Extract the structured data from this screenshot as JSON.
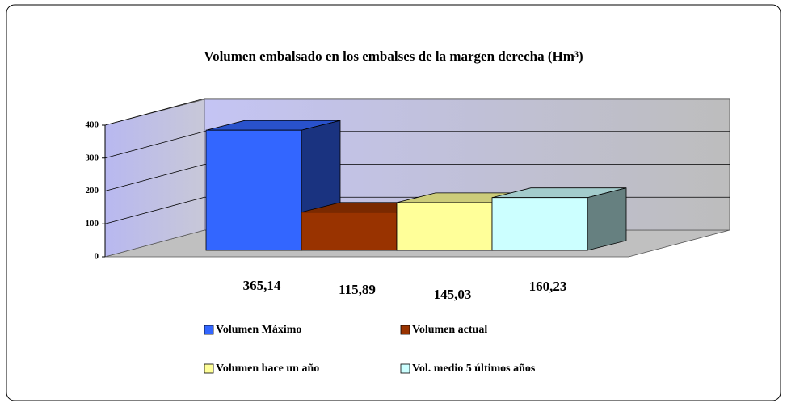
{
  "chart_data": {
    "type": "bar",
    "title": "Volumen embalsado en los embalses de la margen derecha (Hm³)",
    "ylim": [
      0,
      400
    ],
    "yticks": [
      0,
      100,
      200,
      300,
      400
    ],
    "grid": true,
    "series": [
      {
        "name": "Volumen Máximo",
        "color": "#3366ff",
        "values": [
          365.14
        ],
        "value_labels": [
          "365,14"
        ]
      },
      {
        "name": "Volumen actual",
        "color": "#993300",
        "values": [
          115.89
        ],
        "value_labels": [
          "115,89"
        ]
      },
      {
        "name": "Volumen hace un año",
        "color": "#ffff99",
        "values": [
          145.03
        ],
        "value_labels": [
          "145,03"
        ]
      },
      {
        "name": "Vol. medio 5 últimos años",
        "color": "#ccffff",
        "values": [
          160.23
        ],
        "value_labels": [
          "160,23"
        ]
      }
    ]
  }
}
